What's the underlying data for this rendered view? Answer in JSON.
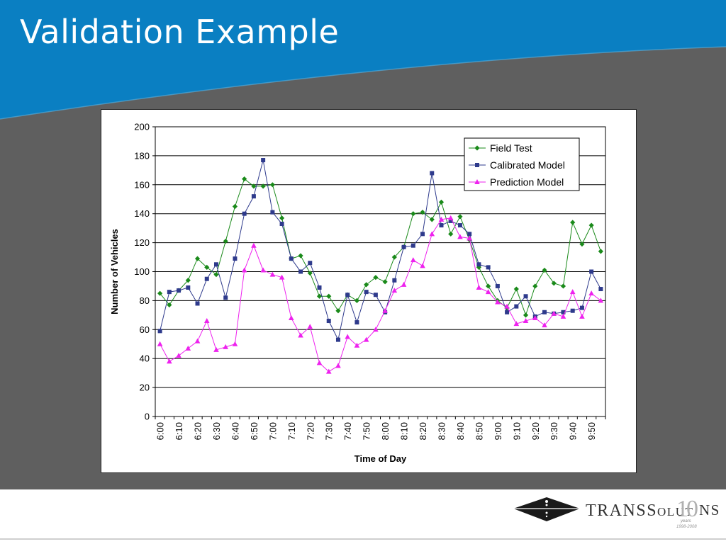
{
  "slide": {
    "title": "Validation Example",
    "colors": {
      "header": "#0a7fc2",
      "background": "#5f5f5f",
      "footer": "#ffffff"
    }
  },
  "logo": {
    "wordmark_prefix": "Trans",
    "wordmark_mid": "Solut",
    "wordmark_suffix": "ns",
    "anniversary_number": "10",
    "anniversary_word": "years",
    "anniversary_range": "1998-2008"
  },
  "chart_data": {
    "type": "line",
    "xlabel": "Time of Day",
    "ylabel": "Number of Vehicles",
    "ylim": [
      0,
      200
    ],
    "yticks": [
      0,
      20,
      40,
      60,
      80,
      100,
      120,
      140,
      160,
      180,
      200
    ],
    "grid": true,
    "legend_position": "top-right",
    "tick_labels": [
      "6:00",
      "6:10",
      "6:20",
      "6:30",
      "6:40",
      "6:50",
      "7:00",
      "7:10",
      "7:20",
      "7:30",
      "7:40",
      "7:50",
      "8:00",
      "8:10",
      "8:20",
      "8:30",
      "8:40",
      "8:50",
      "9:00",
      "9:10",
      "9:20",
      "9:30",
      "9:40",
      "9:50"
    ],
    "x_start_minutes": 360,
    "x_step_minutes": 5,
    "series": [
      {
        "name": "Field Test",
        "color": "#1a8a1a",
        "marker": "diamond",
        "values": [
          85,
          77,
          87,
          94,
          109,
          103,
          98,
          121,
          145,
          164,
          159,
          159,
          160,
          137,
          109,
          111,
          99,
          83,
          83,
          73,
          84,
          80,
          91,
          96,
          93,
          110,
          117,
          140,
          141,
          136,
          148,
          126,
          138,
          122,
          103,
          90,
          80,
          75,
          88,
          70,
          90,
          101,
          92,
          90,
          134,
          119,
          132,
          114
        ]
      },
      {
        "name": "Calibrated Model",
        "color": "#2e3a8c",
        "marker": "square",
        "values": [
          59,
          86,
          87,
          89,
          78,
          95,
          105,
          82,
          109,
          140,
          152,
          177,
          141,
          133,
          109,
          100,
          106,
          89,
          66,
          53,
          84,
          65,
          86,
          84,
          72,
          94,
          117,
          118,
          126,
          168,
          132,
          135,
          132,
          126,
          105,
          103,
          90,
          72,
          76,
          83,
          69,
          72,
          71,
          72,
          73,
          75,
          100,
          88
        ]
      },
      {
        "name": "Prediction Model",
        "color": "#ee22ee",
        "marker": "triangle",
        "values": [
          50,
          38,
          42,
          47,
          52,
          66,
          46,
          48,
          50,
          101,
          118,
          101,
          98,
          96,
          68,
          56,
          62,
          37,
          31,
          35,
          55,
          49,
          53,
          60,
          73,
          87,
          91,
          108,
          104,
          126,
          136,
          137,
          124,
          123,
          89,
          86,
          79,
          76,
          64,
          66,
          68,
          63,
          71,
          69,
          86,
          69,
          85,
          80
        ]
      }
    ]
  }
}
